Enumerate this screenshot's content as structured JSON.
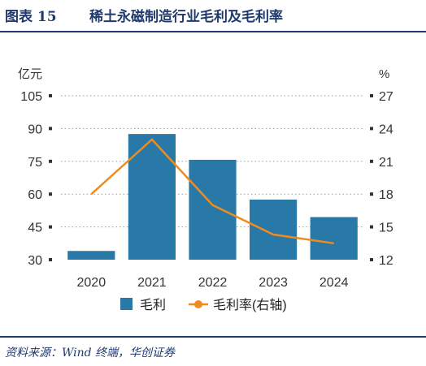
{
  "header": {
    "figure_label": "图表 15",
    "title": "稀土永磁制造行业毛利及毛利率"
  },
  "chart_data": {
    "type": "bar",
    "categories": [
      "2020",
      "2021",
      "2022",
      "2023",
      "2024"
    ],
    "series": [
      {
        "name": "毛利",
        "type": "bar",
        "axis": "left",
        "values": [
          34,
          87.5,
          75.7,
          57.5,
          49.5
        ],
        "color": "#2878a8"
      },
      {
        "name": "毛利率(右轴)",
        "type": "line",
        "axis": "right",
        "values": [
          18.0,
          23.0,
          17.0,
          14.3,
          13.5
        ],
        "color": "#f08c1e"
      }
    ],
    "left_axis": {
      "unit": "亿元",
      "ylim": [
        30,
        105
      ],
      "ticks": [
        30,
        45,
        60,
        75,
        90,
        105
      ]
    },
    "right_axis": {
      "unit": "%",
      "ylim": [
        12,
        27
      ],
      "ticks": [
        12,
        15,
        18,
        21,
        24,
        27
      ]
    },
    "grid": "dotted horizontal",
    "legend_position": "bottom"
  },
  "source": {
    "text": "资料来源：Wind 终端，华创证券"
  }
}
